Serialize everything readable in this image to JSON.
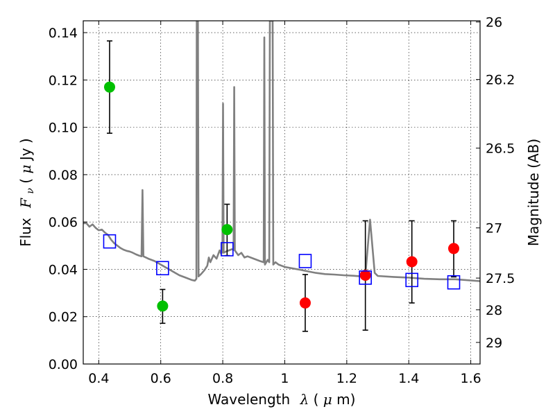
{
  "chart_data": {
    "type": "scatter",
    "xlabel_main": "Wavelength",
    "xlabel_symbol": "λ",
    "xlabel_unit_open": " (",
    "xlabel_unit_mu": "μ",
    "xlabel_unit_close": "m)",
    "ylabel_main": "Flux",
    "ylabel_symbol": "F",
    "ylabel_symbol_sub": "ν",
    "ylabel_unit_open": " ( ",
    "ylabel_unit_mu": "μ",
    "ylabel_unit_close": "Jy )",
    "y2label": "Magnitude (AB)",
    "xlim": [
      0.35,
      1.63
    ],
    "ylim": [
      0.0,
      0.145
    ],
    "grid": true,
    "x_ticks": [
      {
        "value": 0.4,
        "label": "0.4"
      },
      {
        "value": 0.6,
        "label": "0.6"
      },
      {
        "value": 0.8,
        "label": "0.8"
      },
      {
        "value": 1.0,
        "label": "1"
      },
      {
        "value": 1.2,
        "label": "1.2"
      },
      {
        "value": 1.4,
        "label": "1.4"
      },
      {
        "value": 1.6,
        "label": "1.6"
      }
    ],
    "y_ticks": [
      {
        "value": 0.0,
        "label": "0.00"
      },
      {
        "value": 0.02,
        "label": "0.02"
      },
      {
        "value": 0.04,
        "label": "0.04"
      },
      {
        "value": 0.06,
        "label": "0.06"
      },
      {
        "value": 0.08,
        "label": "0.08"
      },
      {
        "value": 0.1,
        "label": "0.10"
      },
      {
        "value": 0.12,
        "label": "0.12"
      },
      {
        "value": 0.14,
        "label": "0.14"
      }
    ],
    "y2_ticks": [
      {
        "flux": 0.1445,
        "label": "26"
      },
      {
        "flux": 0.1202,
        "label": "26.2"
      },
      {
        "flux": 0.0912,
        "label": "26.5"
      },
      {
        "flux": 0.0575,
        "label": "27"
      },
      {
        "flux": 0.0363,
        "label": "27.5"
      },
      {
        "flux": 0.0229,
        "label": "28"
      },
      {
        "flux": 0.00912,
        "label": "29"
      }
    ],
    "series": [
      {
        "color": "#00c000",
        "marker": "circle",
        "points": [
          {
            "x": 0.435,
            "y": 0.117,
            "yerr_low": 0.0975,
            "yerr_high": 0.1365
          },
          {
            "x": 0.606,
            "y": 0.0245,
            "yerr_low": 0.0172,
            "yerr_high": 0.0315
          },
          {
            "x": 0.814,
            "y": 0.0568,
            "yerr_low": 0.0458,
            "yerr_high": 0.0675
          }
        ]
      },
      {
        "color": "#ff0000",
        "marker": "circle",
        "points": [
          {
            "x": 1.066,
            "y": 0.0258,
            "yerr_low": 0.0138,
            "yerr_high": 0.0378
          },
          {
            "x": 1.26,
            "y": 0.0375,
            "yerr_low": 0.0143,
            "yerr_high": 0.0605
          },
          {
            "x": 1.41,
            "y": 0.0432,
            "yerr_low": 0.0258,
            "yerr_high": 0.0605
          },
          {
            "x": 1.545,
            "y": 0.0488,
            "yerr_low": 0.0368,
            "yerr_high": 0.0605
          }
        ]
      },
      {
        "color": "#0000ff",
        "marker": "open-square",
        "points": [
          {
            "x": 0.435,
            "y": 0.0518
          },
          {
            "x": 0.606,
            "y": 0.0405
          },
          {
            "x": 0.814,
            "y": 0.0485
          },
          {
            "x": 1.066,
            "y": 0.0435
          },
          {
            "x": 1.26,
            "y": 0.0365
          },
          {
            "x": 1.41,
            "y": 0.0355
          },
          {
            "x": 1.545,
            "y": 0.0345
          }
        ]
      }
    ],
    "sed_model": {
      "color": "#808080",
      "points": [
        [
          0.35,
          0.0595
        ],
        [
          0.36,
          0.0595
        ],
        [
          0.37,
          0.058
        ],
        [
          0.38,
          0.059
        ],
        [
          0.39,
          0.0575
        ],
        [
          0.4,
          0.0565
        ],
        [
          0.41,
          0.0568
        ],
        [
          0.42,
          0.0555
        ],
        [
          0.43,
          0.0545
        ],
        [
          0.44,
          0.0525
        ],
        [
          0.45,
          0.051
        ],
        [
          0.46,
          0.05
        ],
        [
          0.47,
          0.049
        ],
        [
          0.48,
          0.0483
        ],
        [
          0.49,
          0.0478
        ],
        [
          0.5,
          0.0475
        ],
        [
          0.51,
          0.047
        ],
        [
          0.52,
          0.0463
        ],
        [
          0.53,
          0.0458
        ],
        [
          0.538,
          0.0455
        ],
        [
          0.541,
          0.0735
        ],
        [
          0.544,
          0.0455
        ],
        [
          0.56,
          0.0445
        ],
        [
          0.58,
          0.0435
        ],
        [
          0.6,
          0.042
        ],
        [
          0.62,
          0.0405
        ],
        [
          0.64,
          0.039
        ],
        [
          0.66,
          0.0375
        ],
        [
          0.68,
          0.0365
        ],
        [
          0.7,
          0.0355
        ],
        [
          0.71,
          0.0352
        ],
        [
          0.715,
          0.036
        ],
        [
          0.716,
          0.145
        ],
        [
          0.72,
          0.145
        ],
        [
          0.722,
          0.037
        ],
        [
          0.73,
          0.038
        ],
        [
          0.74,
          0.0395
        ],
        [
          0.75,
          0.0415
        ],
        [
          0.755,
          0.045
        ],
        [
          0.76,
          0.043
        ],
        [
          0.77,
          0.046
        ],
        [
          0.78,
          0.0445
        ],
        [
          0.79,
          0.048
        ],
        [
          0.795,
          0.0465
        ],
        [
          0.799,
          0.0475
        ],
        [
          0.801,
          0.11
        ],
        [
          0.803,
          0.047
        ],
        [
          0.81,
          0.0475
        ],
        [
          0.82,
          0.048
        ],
        [
          0.83,
          0.0485
        ],
        [
          0.835,
          0.0482
        ],
        [
          0.837,
          0.117
        ],
        [
          0.839,
          0.048
        ],
        [
          0.85,
          0.046
        ],
        [
          0.86,
          0.047
        ],
        [
          0.87,
          0.045
        ],
        [
          0.88,
          0.0455
        ],
        [
          0.9,
          0.0445
        ],
        [
          0.92,
          0.0435
        ],
        [
          0.932,
          0.043
        ],
        [
          0.934,
          0.138
        ],
        [
          0.936,
          0.042
        ],
        [
          0.945,
          0.044
        ],
        [
          0.95,
          0.043
        ],
        [
          0.952,
          0.145
        ],
        [
          0.955,
          0.145
        ],
        [
          0.958,
          0.145
        ],
        [
          0.961,
          0.145
        ],
        [
          0.963,
          0.042
        ],
        [
          0.97,
          0.043
        ],
        [
          0.98,
          0.042
        ],
        [
          0.99,
          0.0415
        ],
        [
          1.0,
          0.041
        ],
        [
          1.02,
          0.0405
        ],
        [
          1.05,
          0.0398
        ],
        [
          1.08,
          0.039
        ],
        [
          1.1,
          0.0385
        ],
        [
          1.13,
          0.038
        ],
        [
          1.16,
          0.0378
        ],
        [
          1.19,
          0.0375
        ],
        [
          1.22,
          0.0373
        ],
        [
          1.25,
          0.037
        ],
        [
          1.26,
          0.0375
        ],
        [
          1.275,
          0.061
        ],
        [
          1.29,
          0.0385
        ],
        [
          1.3,
          0.0372
        ],
        [
          1.35,
          0.0368
        ],
        [
          1.4,
          0.0365
        ],
        [
          1.45,
          0.036
        ],
        [
          1.5,
          0.0358
        ],
        [
          1.55,
          0.0358
        ],
        [
          1.58,
          0.0355
        ],
        [
          1.63,
          0.035
        ]
      ]
    }
  }
}
